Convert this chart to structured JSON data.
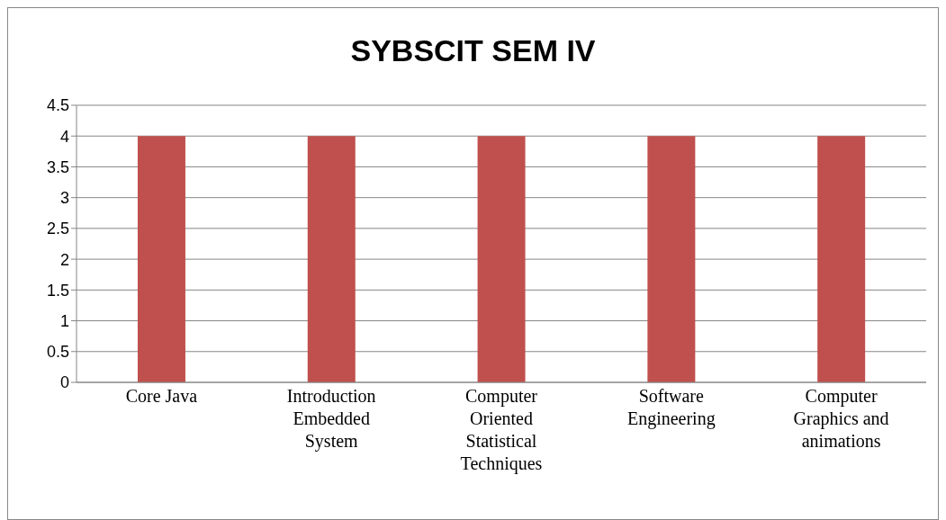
{
  "chart_data": {
    "type": "bar",
    "title": "SYBSCIT SEM IV",
    "categories": [
      "Core Java",
      "Introduction Embedded System",
      "Computer Oriented Statistical Techniques",
      "Software Engineering",
      "Computer Graphics and animations"
    ],
    "values": [
      4,
      4,
      4,
      4,
      4
    ],
    "color": "#c0504d",
    "ylim": [
      0,
      4.5
    ],
    "yticks": [
      0,
      0.5,
      1,
      1.5,
      2,
      2.5,
      3,
      3.5,
      4,
      4.5
    ],
    "grid": "y",
    "legend": false
  }
}
